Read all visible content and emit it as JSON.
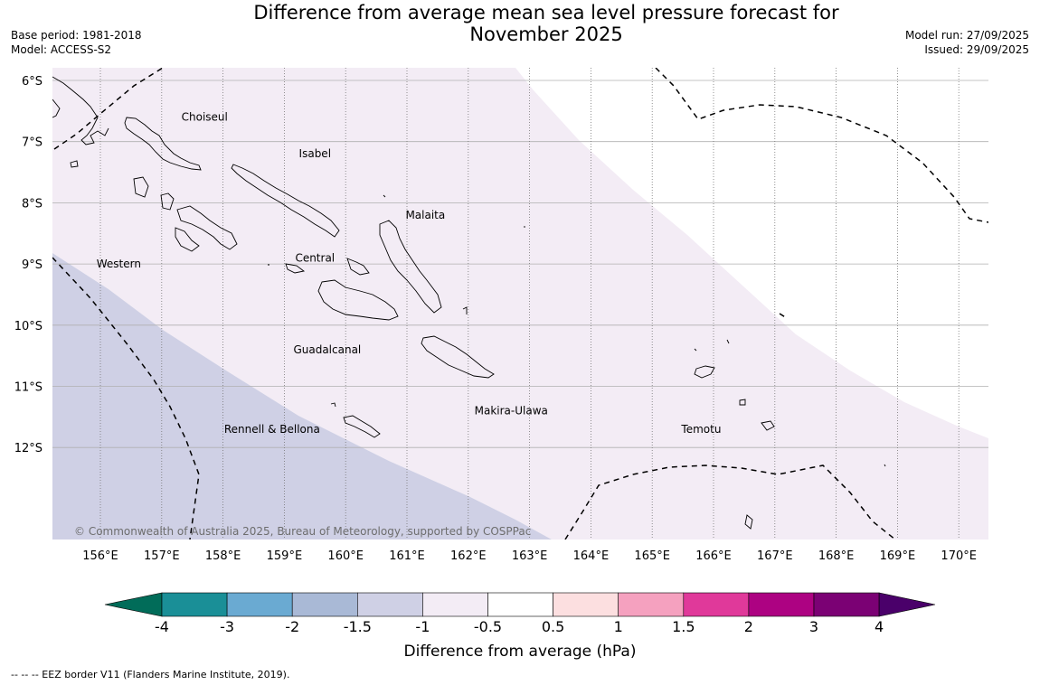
{
  "title": {
    "line1": "Difference from average mean sea level pressure forecast for",
    "line2": "November 2025"
  },
  "meta_left": {
    "base_period": "Base period: 1981-2018",
    "model": "Model: ACCESS-S2"
  },
  "meta_right": {
    "model_run": "Model run: 27/09/2025",
    "issued": "Issued: 29/09/2025"
  },
  "map": {
    "lat_labels": [
      "6°S",
      "7°S",
      "8°S",
      "9°S",
      "10°S",
      "11°S",
      "12°S"
    ],
    "lon_labels": [
      "156°E",
      "157°E",
      "158°E",
      "159°E",
      "160°E",
      "161°E",
      "162°E",
      "163°E",
      "164°E",
      "165°E",
      "166°E",
      "167°E",
      "168°E",
      "169°E",
      "170°E"
    ],
    "extent": {
      "lon": [
        155.2,
        170.5
      ],
      "lat": [
        -13.5,
        -5.8
      ]
    },
    "regions": [
      {
        "label": "Choiseul",
        "lon": 157.7,
        "lat": -6.6
      },
      {
        "label": "Isabel",
        "lon": 159.5,
        "lat": -7.2
      },
      {
        "label": "Malaita",
        "lon": 161.3,
        "lat": -8.2
      },
      {
        "label": "Western",
        "lon": 156.3,
        "lat": -9.0
      },
      {
        "label": "Central",
        "lon": 159.5,
        "lat": -8.9
      },
      {
        "label": "Guadalcanal",
        "lon": 159.7,
        "lat": -10.4
      },
      {
        "label": "Makira-Ulawa",
        "lon": 162.7,
        "lat": -11.4
      },
      {
        "label": "Rennell & Bellona",
        "lon": 158.8,
        "lat": -11.7
      },
      {
        "label": "Temotu",
        "lon": 165.8,
        "lat": -11.7
      }
    ],
    "copyright": "© Commonwealth of Australia 2025, Bureau of Meteorology, supported by COSPPac",
    "fill_colors": {
      "neg_0_5_to_1": "#f3ecf5",
      "neg_1_to_1_5": "#cfd0e5"
    }
  },
  "colorbar": {
    "tick_labels": [
      "-4",
      "-3",
      "-2",
      "-1.5",
      "-1",
      "-0.5",
      "0.5",
      "1",
      "1.5",
      "2",
      "3",
      "4"
    ],
    "colors": [
      "#1a8f97",
      "#6aaad2",
      "#a9b9d6",
      "#cfd0e5",
      "#f3ecf5",
      "#ffffff",
      "#fcdfe0",
      "#f5a1bf",
      "#e0399a",
      "#ad0282",
      "#7b0174"
    ],
    "extend_low_color": "#016c59",
    "extend_high_color": "#4a006a",
    "label": "Difference from average (hPa)"
  },
  "legend": {
    "text": "--  --  -- EEZ border V11 (Flanders Marine Institute, 2019)."
  }
}
